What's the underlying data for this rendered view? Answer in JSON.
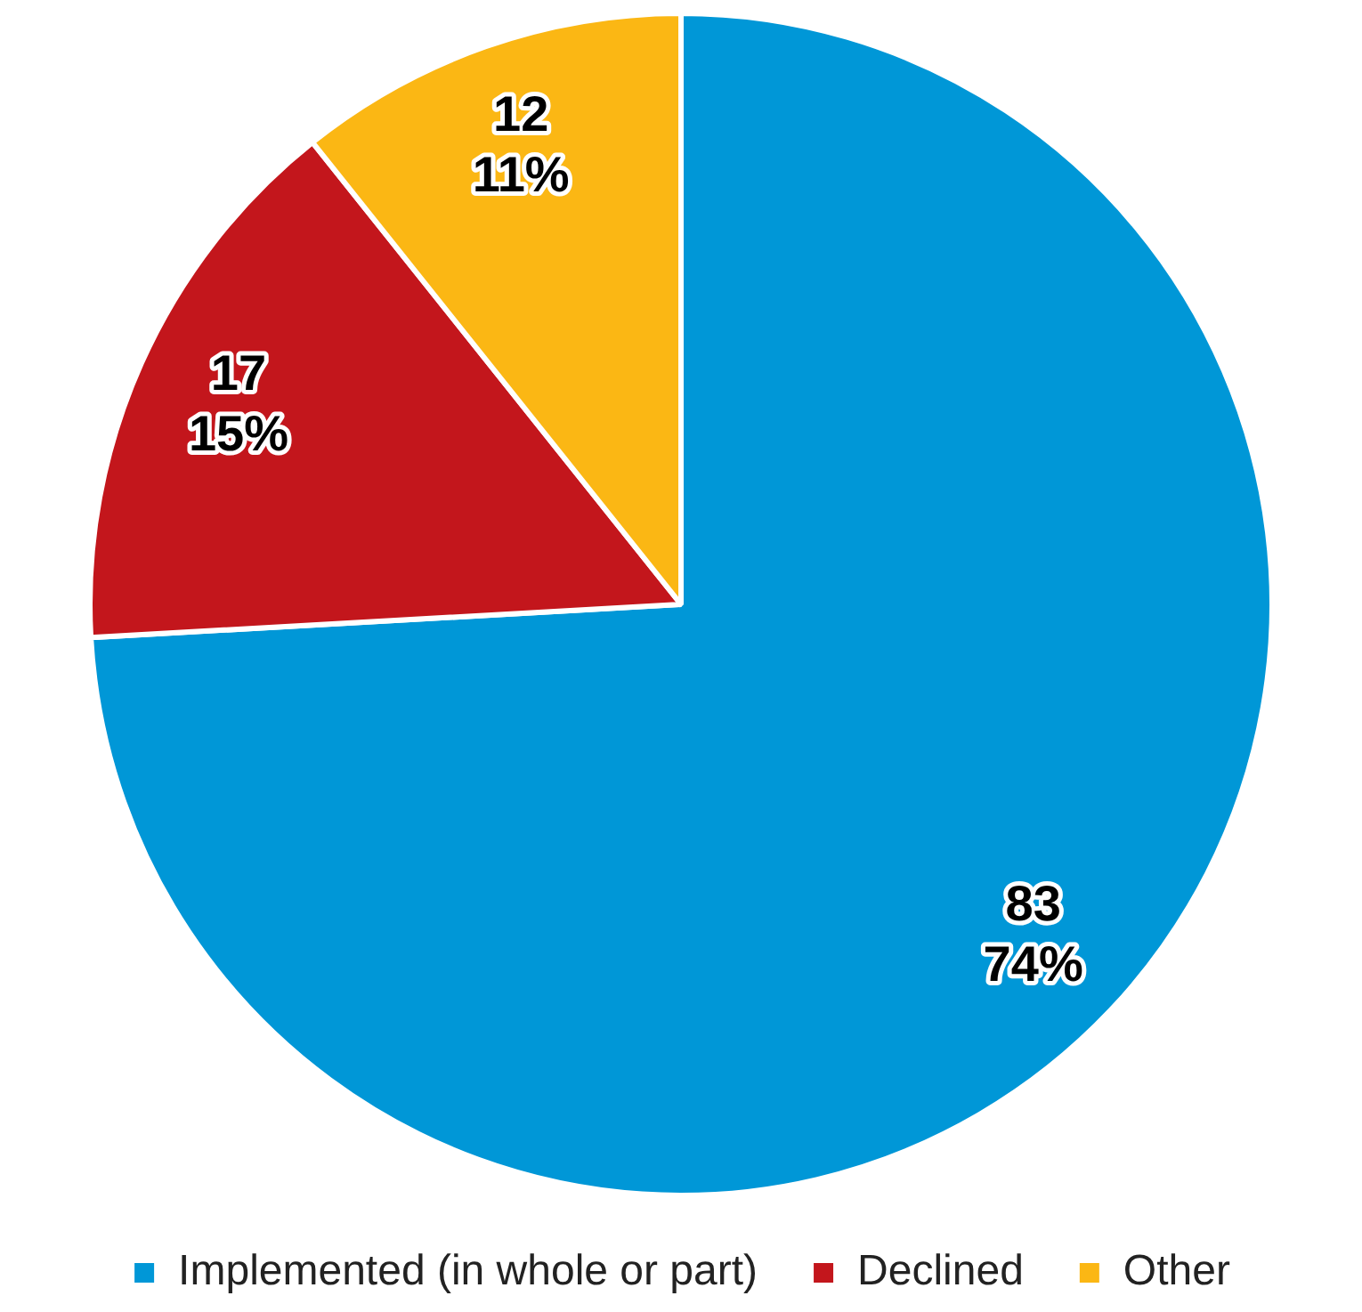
{
  "chart_data": {
    "type": "pie",
    "categories": [
      "Implemented (in whole or part)",
      "Declined",
      "Other"
    ],
    "values": [
      83,
      17,
      12
    ],
    "colors": [
      "#0097d7",
      "#c3161c",
      "#fbb714"
    ],
    "value_labels": [
      "83\n74%",
      "17\n15%",
      "12\n11%"
    ],
    "legend": "bottom"
  }
}
